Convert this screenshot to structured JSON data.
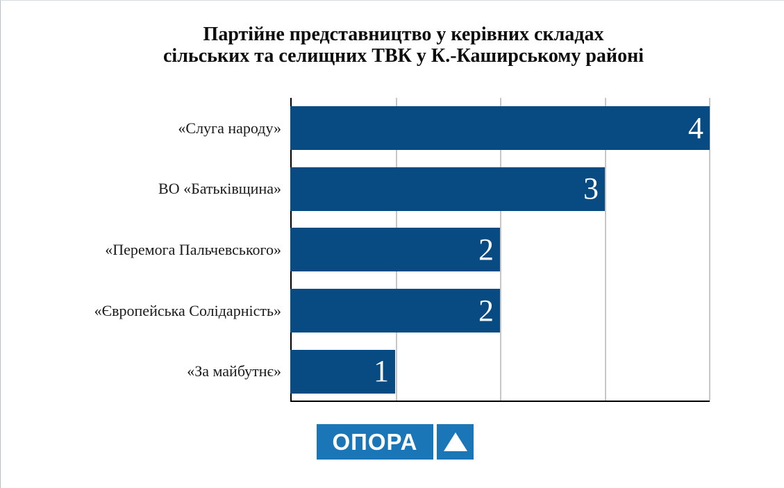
{
  "title": {
    "line1": "Партійне представництво у керівних складах",
    "line2": "сільських та селищних ТВК у К.-Каширському районі"
  },
  "chart_data": {
    "type": "bar",
    "orientation": "horizontal",
    "title": "Партійне представництво у керівних складах сільських та селищних ТВК у К.-Каширському районі",
    "categories": [
      "«Слуга народу»",
      "ВО «Батьківщина»",
      "«Перемога Пальчевського»",
      "«Європейська Солідарність»",
      "«За майбутнє»"
    ],
    "values": [
      4,
      3,
      2,
      2,
      1
    ],
    "value_labels": [
      "4",
      "3",
      "2",
      "2",
      "1"
    ],
    "xlim": [
      0,
      4
    ],
    "gridline_values": [
      1,
      2,
      3,
      4
    ],
    "grid_on": true,
    "legend": "none",
    "xlabel": "",
    "ylabel": "",
    "colors": {
      "bar": "#084a82",
      "value_label": "#ffffff",
      "gridline": "#c6c6c6",
      "axis": "#000000",
      "category_label": "#1a1a1a",
      "background": "#ffffff"
    }
  },
  "logo": {
    "text": "ОПОРА",
    "icon": "triangle-up-icon",
    "colors": {
      "background": "#1b76b7",
      "text": "#ffffff",
      "triangle": "#ffffff"
    }
  }
}
